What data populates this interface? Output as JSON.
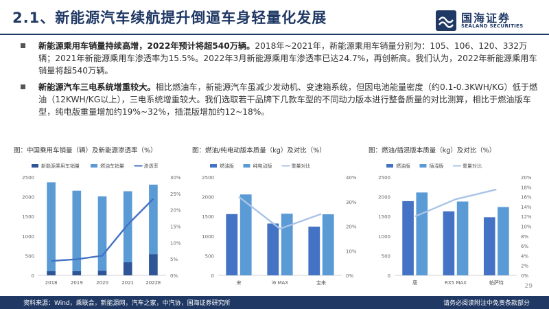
{
  "header": {
    "title": "2.1、新能源汽车续航提升倒逼车身轻量化发展",
    "logo_cn": "国海证券",
    "logo_en": "SEALAND SECURITIES"
  },
  "bullets": [
    {
      "bold": "新能源乘用车销量持续高增，2022年预计将超540万辆。",
      "text": "2018年~2021年，新能源乘用车销量分别为：105、106、120、332万辆；2021年新能源乘用车渗透率为15.5%。2022年3月新能源乘用车渗透率已达24.7%，再创新高。我们认为，2022年新能源乘用车销量将超540万辆。"
    },
    {
      "bold": "新能源汽车三电系统增重较大。",
      "text": "相比燃油车，新能源汽车虽减少发动机、变速箱系统，但因电池能量密度（约0.1-0.3KWH/KG）低于燃油（12KWH/KG以上），三电系统增重较大。我们选取若干品牌下几款车型的不同动力版本进行整备质量的对比测算，相比于燃油版车型，纯电版重量增加约19%~32%，插混版增加约12~18%。"
    }
  ],
  "chart_data": [
    {
      "type": "bar+line",
      "title": "图：中国乘用车销量（辆）及新能源渗透率（%）",
      "categories": [
        "2018",
        "2019",
        "2020",
        "2021",
        "2022E"
      ],
      "series": [
        {
          "name": "新能源乘用车销量",
          "kind": "bar",
          "axis": "left",
          "values": [
            105,
            106,
            120,
            332,
            540
          ]
        },
        {
          "name": "燃油车销量",
          "kind": "bar",
          "axis": "left",
          "values": [
            2265,
            2050,
            1890,
            1810,
            1770
          ]
        },
        {
          "name": "渗透率",
          "kind": "line",
          "axis": "right",
          "values": [
            4.4,
            4.9,
            6.0,
            15.5,
            23.4
          ]
        }
      ],
      "stacked": true,
      "ylim": [
        0,
        2500
      ],
      "yticks": [
        "0",
        "500",
        "1000",
        "1500",
        "2000",
        "2500"
      ],
      "y2lim": [
        0,
        30
      ],
      "y2ticks": [
        "0%",
        "5%",
        "10%",
        "15%",
        "20%",
        "25%",
        "30%"
      ],
      "legend": "top",
      "colors": {
        "新能源乘用车销量": "#2f5597",
        "燃油车销量": "#5b9bd5",
        "渗透率": "#4472c4"
      }
    },
    {
      "type": "bar+line",
      "title": "图：燃油/纯电动版本质量（kg）及对比（%）",
      "categories": [
        "宋",
        "i6 MAX",
        "宝来"
      ],
      "series": [
        {
          "name": "燃油版",
          "kind": "bar",
          "axis": "left",
          "values": [
            1560,
            1320,
            1240
          ]
        },
        {
          "name": "纯电动版",
          "kind": "bar",
          "axis": "left",
          "values": [
            2060,
            1570,
            1555
          ]
        },
        {
          "name": "重量对比",
          "kind": "line",
          "axis": "right",
          "values": [
            32,
            19,
            25
          ]
        }
      ],
      "ylim": [
        0,
        2500
      ],
      "yticks": [
        "0",
        "500",
        "1000",
        "1500",
        "2000",
        "2500"
      ],
      "y2lim": [
        0,
        40
      ],
      "y2ticks": [
        "0%",
        "10%",
        "20%",
        "30%",
        "40%"
      ],
      "legend": "top",
      "colors": {
        "燃油版": "#4472c4",
        "纯电动版": "#5b9bd5",
        "重量对比": "#a9c4e6"
      }
    },
    {
      "type": "bar+line",
      "title": "图：燃油/插混版本质量（kg）及对比（%）",
      "categories": [
        "唐",
        "RX5 MAX",
        "帕萨特"
      ],
      "series": [
        {
          "name": "燃油版",
          "kind": "bar",
          "axis": "left",
          "values": [
            1890,
            1630,
            1480
          ]
        },
        {
          "name": "插混版",
          "kind": "bar",
          "axis": "left",
          "values": [
            2110,
            1880,
            1740
          ]
        },
        {
          "name": "重量对比",
          "kind": "line",
          "axis": "right",
          "values": [
            12,
            15.5,
            17.5
          ]
        }
      ],
      "ylim": [
        0,
        2500
      ],
      "yticks": [
        "0",
        "500",
        "1000",
        "1500",
        "2000",
        "2500"
      ],
      "y2lim": [
        0,
        20
      ],
      "y2ticks": [
        "0%",
        "2%",
        "4%",
        "6%",
        "8%",
        "10%",
        "12%",
        "14%",
        "16%",
        "18%",
        "20%"
      ],
      "legend": "top",
      "colors": {
        "燃油版": "#4472c4",
        "插混版": "#5b9bd5",
        "重量对比": "#a9c4e6"
      }
    }
  ],
  "footer": {
    "source": "资料来源：Wind，乘联会，新能源网，汽车之家，中汽协，国海证券研究所",
    "disclaimer": "请务必阅读附注中免责条款部分",
    "page": "29"
  }
}
